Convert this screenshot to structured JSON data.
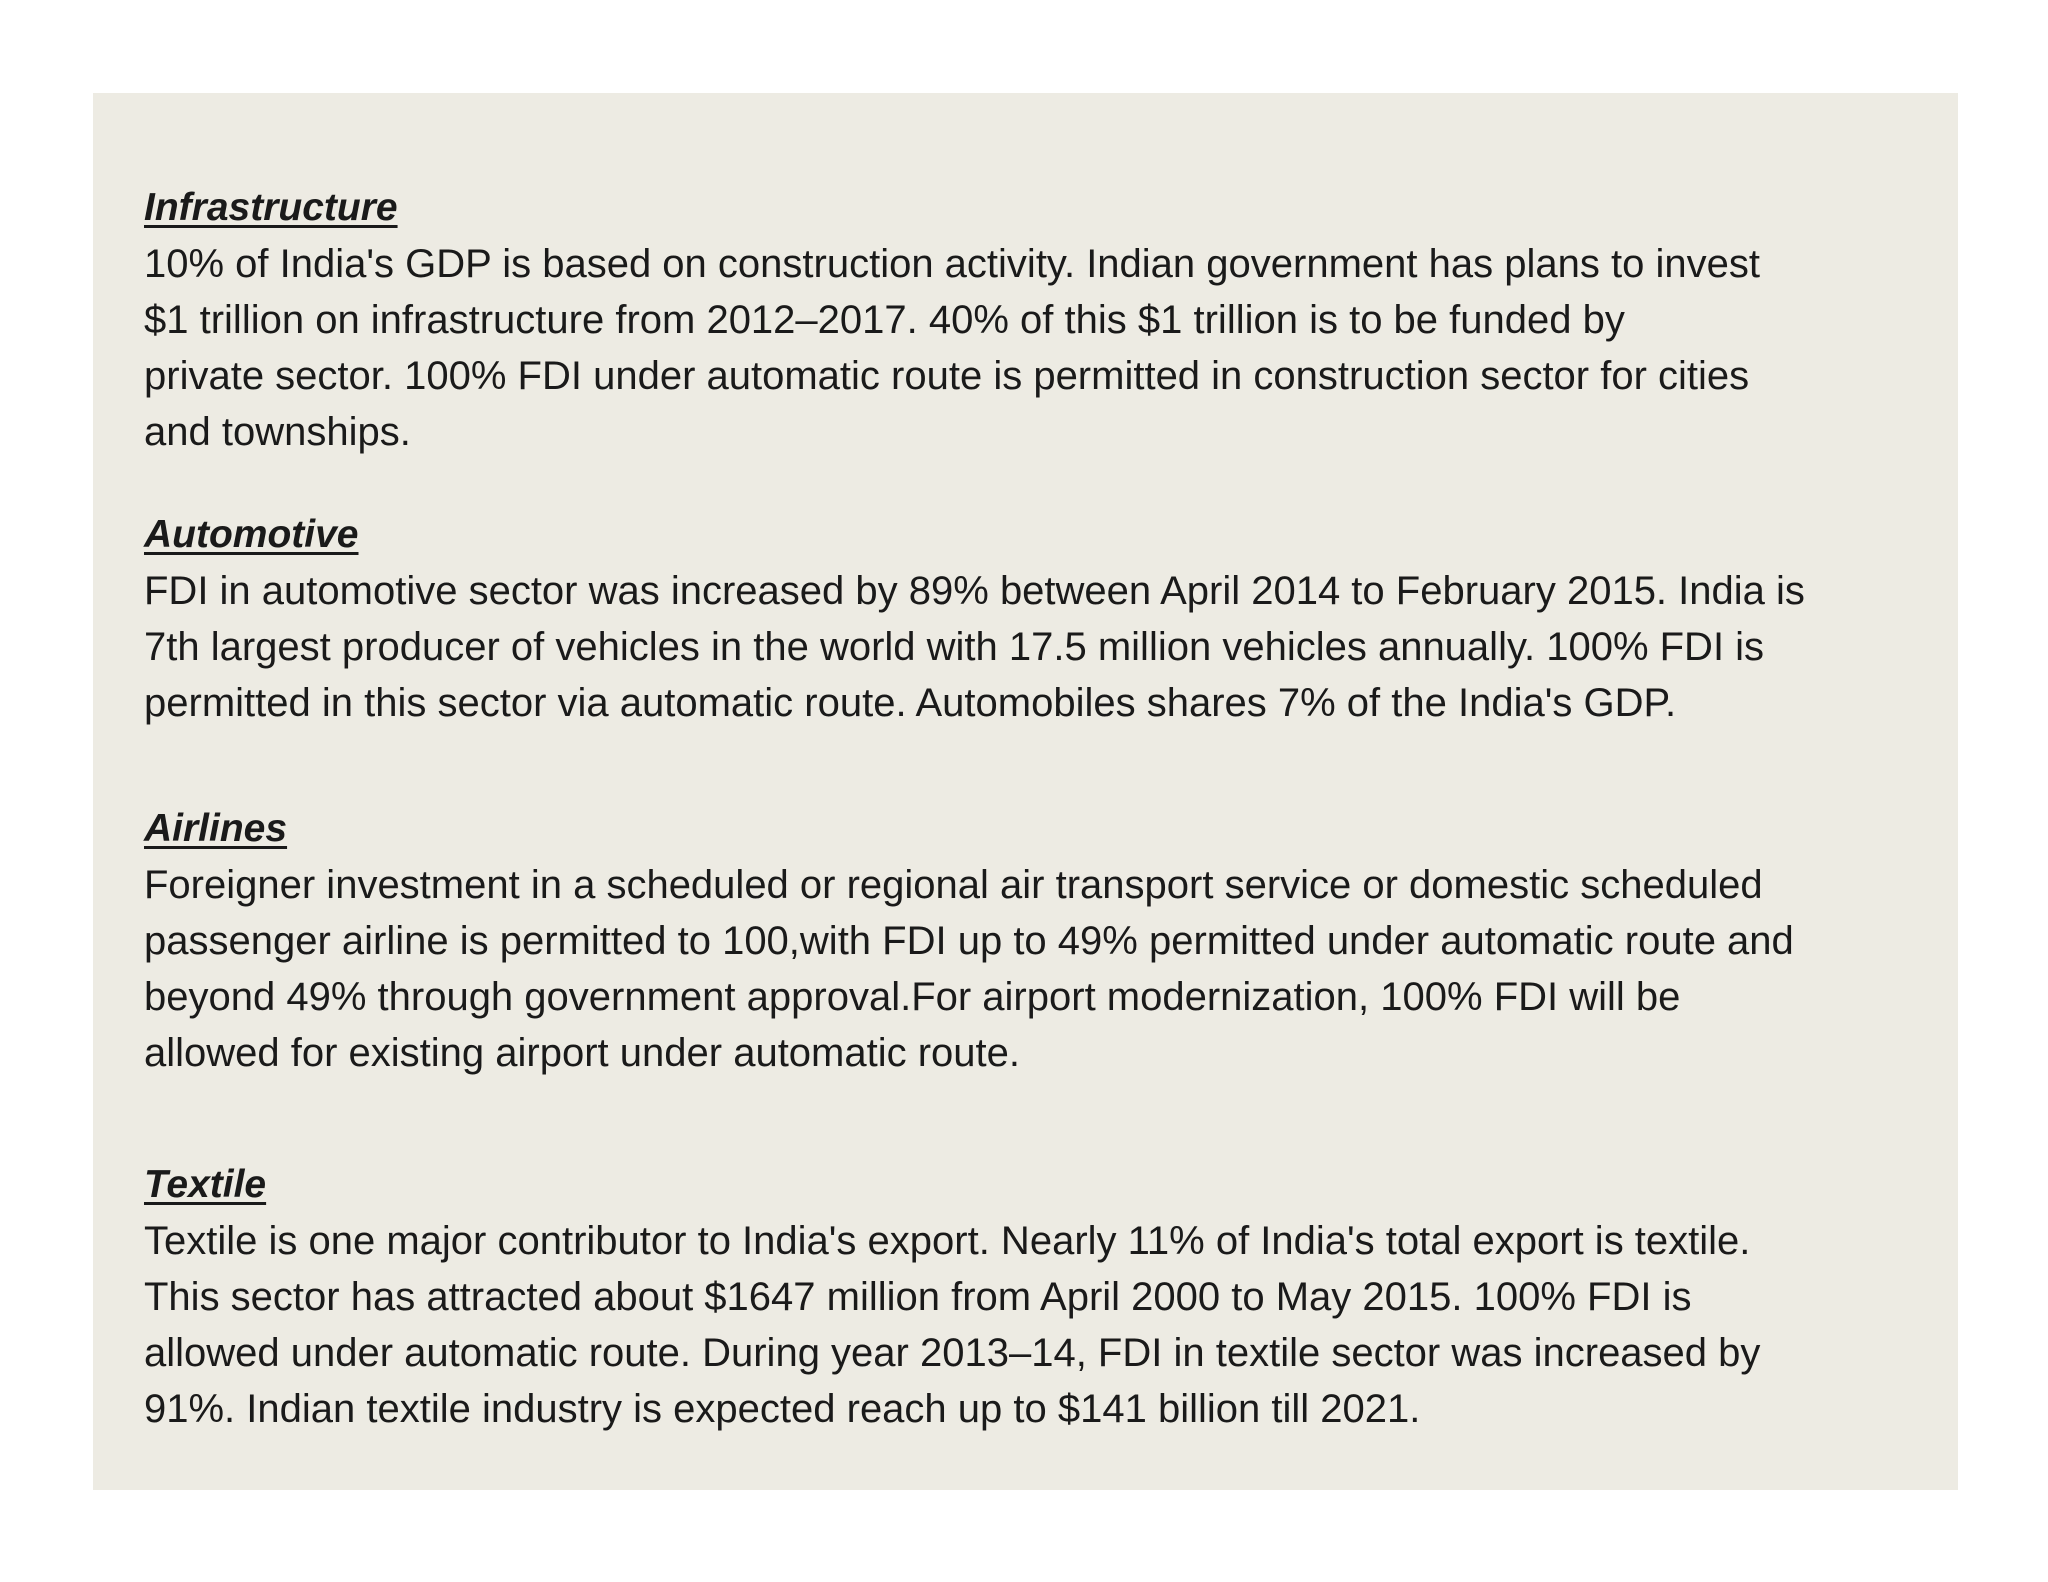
{
  "sections": [
    {
      "heading": "Infrastructure",
      "lines": [
        "10% of India's GDP is based on construction activity. Indian government has plans to invest",
        "$1 trillion on infrastructure from 2012–2017. 40% of this $1 trillion is to be funded by",
        "private sector. 100% FDI under automatic route is permitted in construction sector for cities",
        "and townships."
      ]
    },
    {
      "heading": "Automotive",
      "lines": [
        "FDI in automotive sector was increased by 89% between April 2014 to February 2015. India is",
        "7th largest producer of vehicles in the world with 17.5 million vehicles annually. 100% FDI is",
        "permitted in this sector via automatic route. Automobiles shares 7% of the India's GDP."
      ]
    },
    {
      "heading": "Airlines",
      "lines": [
        "Foreigner investment in a scheduled or regional air transport service or domestic scheduled",
        "passenger airline is permitted to 100,with FDI up to 49% permitted under automatic route and",
        "beyond 49% through government approval.For airport modernization, 100% FDI will be",
        "allowed for existing airport under automatic route."
      ]
    },
    {
      "heading": "Textile",
      "lines": [
        "Textile is one major contributor to India's export. Nearly 11% of India's total export is textile.",
        "This sector has attracted about $1647 million from April 2000 to May 2015. 100% FDI is",
        "allowed under automatic route. During year 2013–14, FDI in textile sector was increased by",
        "91%. Indian textile industry is expected reach up to $141 billion till 2021."
      ]
    }
  ]
}
